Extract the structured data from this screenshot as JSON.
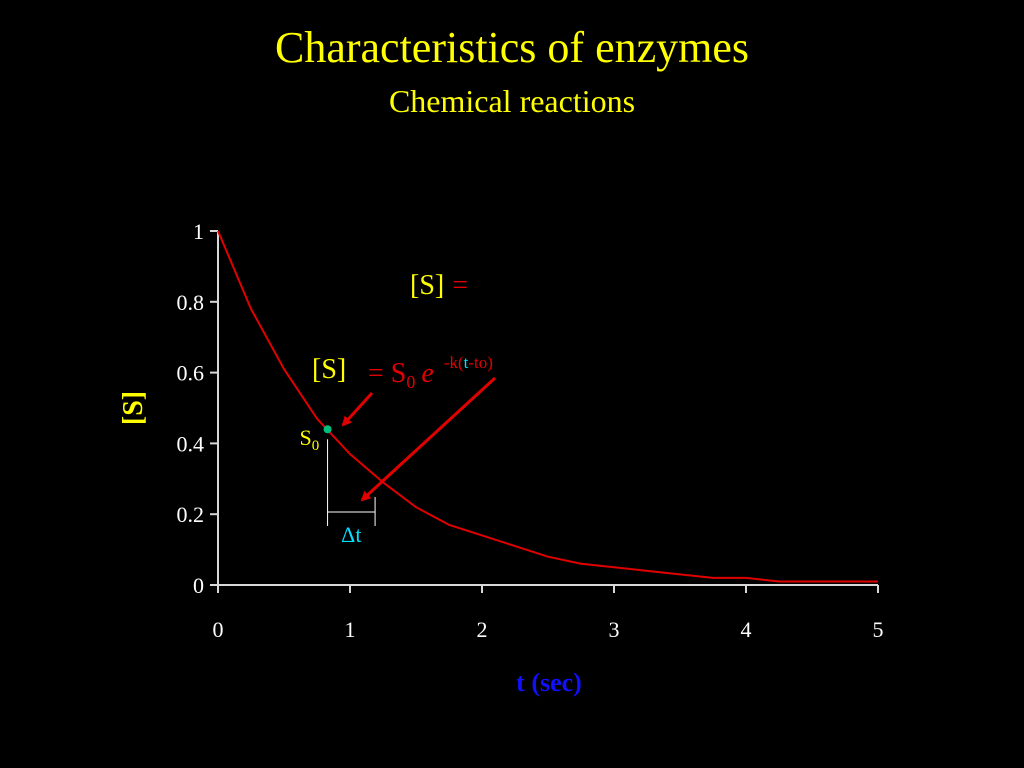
{
  "chart_data": {
    "type": "line",
    "title": "Characteristics of enzymes",
    "subtitle": "Chemical reactions",
    "xlabel": "t (sec)",
    "ylabel": "[S]",
    "x": [
      0,
      0.25,
      0.5,
      0.75,
      1,
      1.25,
      1.5,
      1.75,
      2,
      2.25,
      2.5,
      2.75,
      3,
      3.25,
      3.5,
      3.75,
      4,
      4.25,
      4.5,
      4.75,
      5
    ],
    "series": [
      {
        "color": "#e00000",
        "values": [
          1,
          0.78,
          0.61,
          0.47,
          0.37,
          0.29,
          0.22,
          0.17,
          0.14,
          0.11,
          0.08,
          0.06,
          0.05,
          0.04,
          0.03,
          0.02,
          0.02,
          0.01,
          0.01,
          0.01,
          0.01
        ]
      }
    ],
    "xlim": [
      0,
      5
    ],
    "ylim": [
      0,
      1
    ],
    "xticks": [
      0,
      1,
      2,
      3,
      4,
      5
    ],
    "yticks": [
      0,
      0.2,
      0.4,
      0.6,
      0.8,
      1
    ],
    "marker": {
      "x": 0.83,
      "y": 0.44,
      "color": "#00c080",
      "label": "S",
      "sub": "0"
    },
    "interval": {
      "x": [
        0.83,
        1.19
      ],
      "label": "Δt"
    },
    "equation_top": {
      "lhs": "[S]",
      "eq": "="
    },
    "equation": {
      "lhs": "[S]",
      "eq": "= S",
      "sub": "0",
      "e": "e",
      "exp1": "-k(",
      "exp2": "t",
      "exp3": "-to)"
    }
  }
}
